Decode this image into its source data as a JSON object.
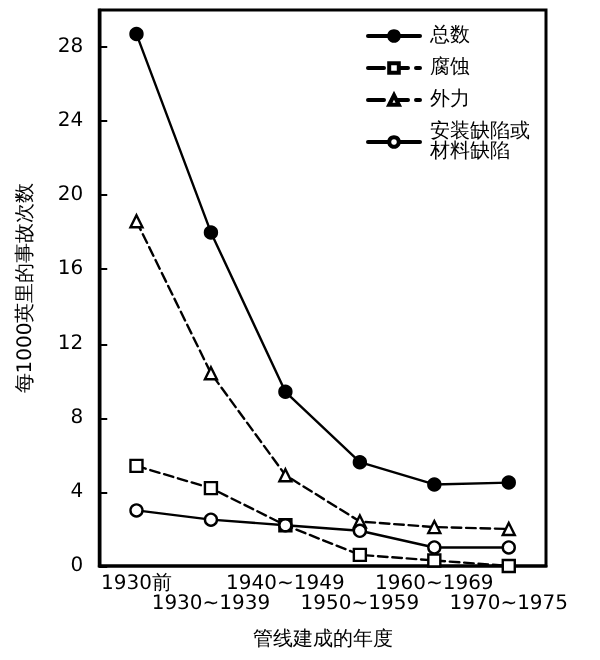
{
  "chart_data": {
    "type": "line",
    "xlabel": "管线建成的年度",
    "ylabel": "每1000英里的事故次数",
    "categories": [
      "1930前",
      "1930~1939",
      "1940~1949",
      "1950~1959",
      "1960~1969",
      "1970~1975"
    ],
    "series": [
      {
        "name": "总数",
        "color": "#000000",
        "marker": "circle",
        "line_style": "solid",
        "values": [
          28.7,
          18.0,
          9.4,
          5.6,
          4.4,
          4.5
        ]
      },
      {
        "name": "腐蚀",
        "color": "#000000",
        "marker": "square",
        "line_style": "dashed",
        "values": [
          5.4,
          4.2,
          2.2,
          0.6,
          0.3,
          0
        ]
      },
      {
        "name": "外力",
        "color": "#000000",
        "marker": "triangle",
        "line_style": "dashed",
        "values": [
          18.6,
          10.4,
          4.9,
          2.4,
          2.1,
          2.0
        ]
      },
      {
        "name": "安装缺陷或材料缺陷",
        "color": "#000000",
        "marker": "circle",
        "line_style": "solid",
        "values": [
          3.0,
          2.5,
          2.2,
          1.9,
          1.0,
          1.0
        ]
      }
    ],
    "ylim": [
      0,
      30
    ],
    "yticks": [
      0,
      4,
      8,
      12,
      16,
      20,
      24,
      28
    ],
    "grid": false,
    "legend": "top right"
  }
}
